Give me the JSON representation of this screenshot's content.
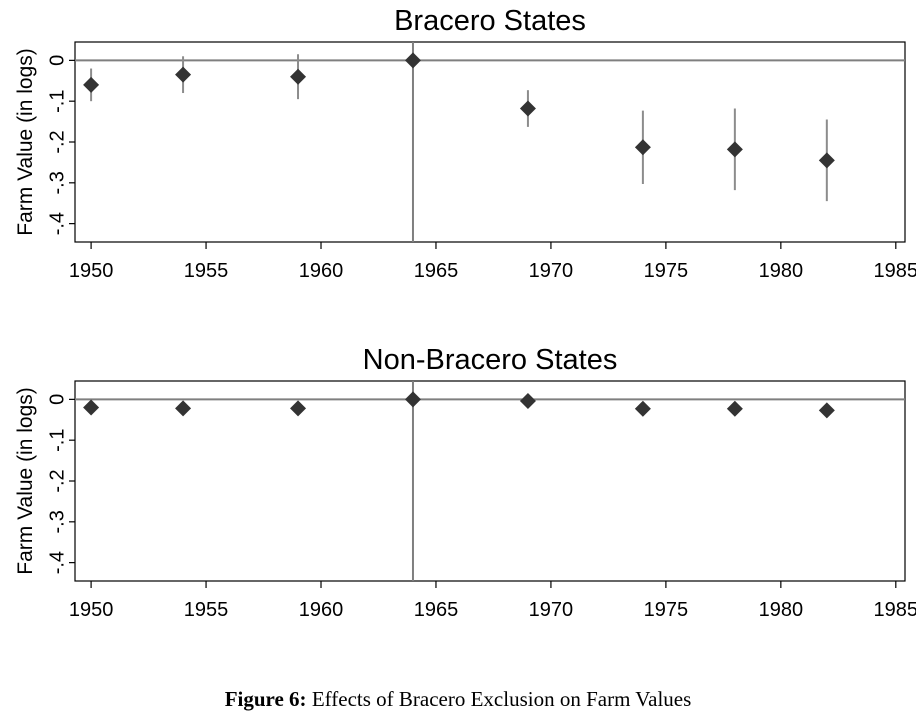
{
  "caption": {
    "label": "Figure 6:",
    "text": "Effects of Bracero Exclusion on Farm Values"
  },
  "chart_data": [
    {
      "type": "scatter",
      "title": "Bracero States",
      "xlabel": "",
      "ylabel": "Farm Value (in logs)",
      "xlim": [
        1949.3,
        1985.4
      ],
      "ylim": [
        -0.445,
        0.045
      ],
      "xticks": [
        1950,
        1955,
        1960,
        1965,
        1970,
        1975,
        1980,
        1985
      ],
      "yticks": [
        0,
        -0.1,
        -0.2,
        -0.3,
        -0.4
      ],
      "ytick_labels": [
        "0",
        "-.1",
        "-.2",
        "-.3",
        "-.4"
      ],
      "reference_lines": {
        "y": 0,
        "x": 1964
      },
      "marker": "diamond",
      "colors": {
        "marker": "#333333",
        "ci": "#8c8c8c",
        "ref_line": "#7f7f7f"
      },
      "x": [
        1950,
        1954,
        1959,
        1964,
        1969,
        1974,
        1978,
        1982
      ],
      "y": [
        -0.06,
        -0.035,
        -0.04,
        0.0,
        -0.118,
        -0.213,
        -0.218,
        -0.245
      ],
      "ci_low": [
        -0.1,
        -0.08,
        -0.095,
        0.0,
        -0.163,
        -0.303,
        -0.318,
        -0.345
      ],
      "ci_high": [
        -0.02,
        0.01,
        0.015,
        0.0,
        -0.073,
        -0.123,
        -0.118,
        -0.145
      ]
    },
    {
      "type": "scatter",
      "title": "Non-Bracero States",
      "xlabel": "",
      "ylabel": "Farm Value (in logs)",
      "xlim": [
        1949.3,
        1985.4
      ],
      "ylim": [
        -0.445,
        0.045
      ],
      "xticks": [
        1950,
        1955,
        1960,
        1965,
        1970,
        1975,
        1980,
        1985
      ],
      "yticks": [
        0,
        -0.1,
        -0.2,
        -0.3,
        -0.4
      ],
      "ytick_labels": [
        "0",
        "-.1",
        "-.2",
        "-.3",
        "-.4"
      ],
      "reference_lines": {
        "y": 0,
        "x": 1964
      },
      "marker": "diamond",
      "colors": {
        "marker": "#333333",
        "ci": "#8c8c8c",
        "ref_line": "#7f7f7f"
      },
      "x": [
        1950,
        1954,
        1959,
        1964,
        1969,
        1974,
        1978,
        1982
      ],
      "y": [
        -0.02,
        -0.022,
        -0.022,
        0.0,
        -0.004,
        -0.023,
        -0.023,
        -0.027
      ],
      "ci_low": [
        -0.02,
        -0.022,
        -0.022,
        0.0,
        -0.004,
        -0.023,
        -0.023,
        -0.027
      ],
      "ci_high": [
        -0.02,
        -0.022,
        -0.022,
        0.0,
        -0.004,
        -0.023,
        -0.023,
        -0.027
      ]
    }
  ]
}
